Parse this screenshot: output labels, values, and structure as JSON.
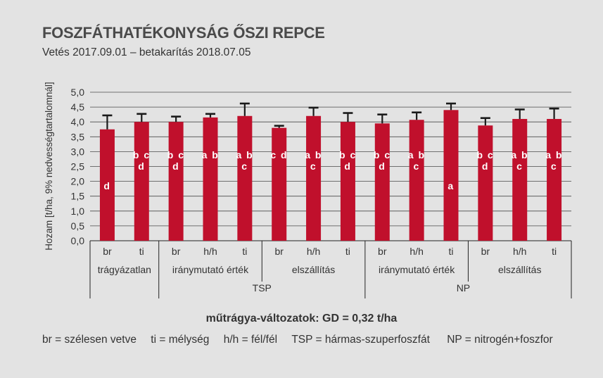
{
  "title": "FOSZFÁTHATÉKONYSÁG ŐSZI REPCE",
  "subtitle": "Vetés 2017.09.01 – betakarítás 2018.07.05",
  "footer_title": "műtrágya-változatok: GD = 0,32 t/ha",
  "legend": [
    "br = szélesen vetve",
    "ti = mélység",
    "h/h = fél/fél",
    "TSP = hármas-szuperfoszfát",
    "NP = nitrogén+foszfor"
  ],
  "colors": {
    "bar": "#c0102c",
    "error": "#1a1a1a",
    "grid": "#4a4a4a",
    "background": "#e3e3e3",
    "letters": "#ffffff"
  },
  "chart_data": {
    "type": "bar",
    "ylabel": "Hozam [t/ha, 9% nedvességtartalomnál]",
    "ylim": [
      0,
      5
    ],
    "yticks": [
      "0,0",
      "0,5",
      "1,0",
      "1,5",
      "2,0",
      "2,5",
      "3,0",
      "3,5",
      "4,0",
      "4,5",
      "5,0"
    ],
    "grid": true,
    "categories": [
      "br",
      "ti",
      "br",
      "h/h",
      "ti",
      "br",
      "h/h",
      "ti",
      "br",
      "h/h",
      "ti",
      "br",
      "h/h",
      "ti"
    ],
    "values": [
      3.75,
      4.0,
      4.0,
      4.15,
      4.2,
      3.8,
      4.2,
      4.0,
      3.95,
      4.07,
      4.4,
      3.88,
      4.1,
      4.1
    ],
    "error": [
      0.47,
      0.27,
      0.18,
      0.12,
      0.42,
      0.07,
      0.28,
      0.3,
      0.3,
      0.25,
      0.22,
      0.25,
      0.32,
      0.35
    ],
    "significance": [
      "d",
      "b c d",
      "b c d",
      "a b",
      "a b c",
      "c d",
      "a b c",
      "b c d",
      "b c d",
      "a b c",
      "a",
      "b c d",
      "a b c",
      "a b c"
    ],
    "groups": [
      "trágyázatlan",
      "iránymutató érték",
      "elszállítás",
      "iránymutató érték",
      "elszállítás"
    ],
    "supergroups": [
      "TSP",
      "NP"
    ]
  }
}
